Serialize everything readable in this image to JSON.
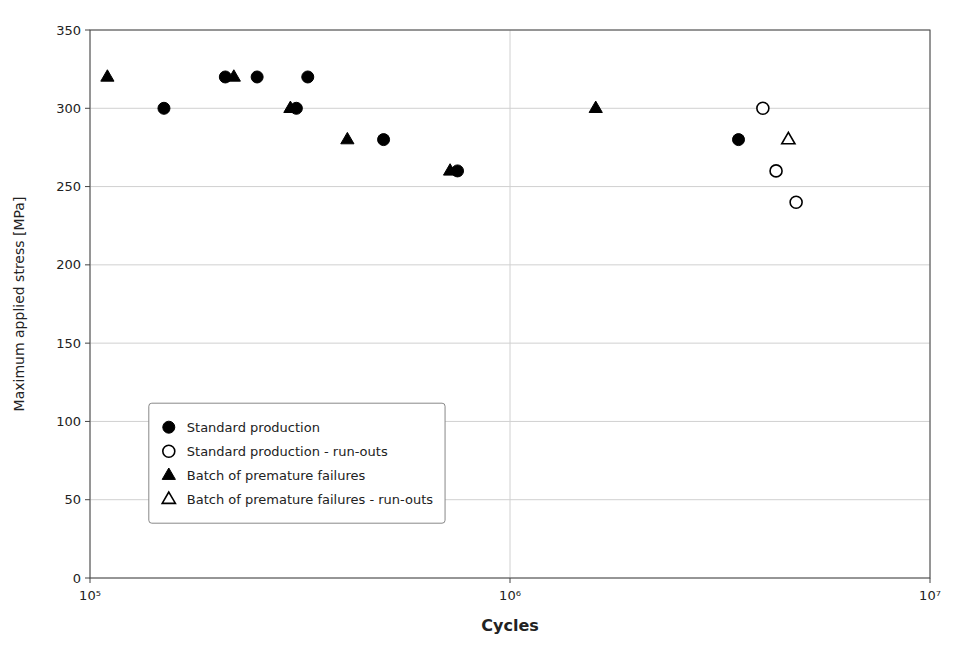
{
  "chart_data": {
    "type": "scatter",
    "xlabel": "Cycles",
    "ylabel": "Maximum applied stress [MPa]",
    "log": "x",
    "xlim": [
      100000,
      10000000
    ],
    "xticks": [
      {
        "value": 100000,
        "label": "10⁵"
      },
      {
        "value": 1000000,
        "label": "10⁶"
      },
      {
        "value": 10000000,
        "label": "10⁷"
      }
    ],
    "ylim": [
      0,
      350
    ],
    "yticks": [
      0,
      50,
      100,
      150,
      200,
      250,
      300,
      350
    ],
    "grid": true,
    "legend": "lower left",
    "series": [
      {
        "name": "Standard production",
        "marker": "circle",
        "color": "#000000",
        "x": [
          150000,
          210000,
          250000,
          310000,
          330000,
          500000,
          750000,
          3500000
        ],
        "values": [
          300,
          320,
          320,
          300,
          320,
          280,
          260,
          280
        ]
      },
      {
        "name": "Standard production - run-outs",
        "marker": "circle-open",
        "color": "#000000",
        "x": [
          4000000,
          4300000,
          4800000
        ],
        "values": [
          300,
          260,
          240
        ]
      },
      {
        "name": "Batch of premature failures",
        "marker": "triangle",
        "color": "#000000",
        "x": [
          110000,
          220000,
          300000,
          410000,
          720000,
          1600000
        ],
        "values": [
          320,
          320,
          300,
          280,
          260,
          300
        ]
      },
      {
        "name": "Batch of premature failures - run-outs",
        "marker": "triangle-open",
        "color": "#000000",
        "x": [
          4600000
        ],
        "values": [
          280
        ]
      }
    ]
  }
}
